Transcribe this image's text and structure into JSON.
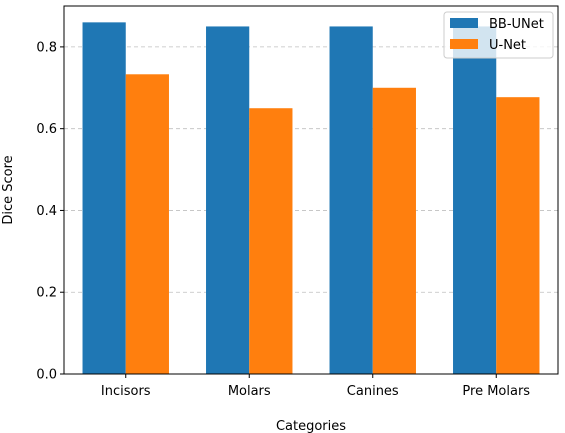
{
  "chart_data": {
    "type": "bar",
    "title": "",
    "xlabel": "Categories",
    "ylabel": "Dice Score",
    "categories": [
      "Incisors",
      "Molars",
      "Canines",
      "Pre Molars"
    ],
    "series": [
      {
        "name": "BB-UNet",
        "color": "#1f77b4",
        "values": [
          0.86,
          0.85,
          0.85,
          0.85
        ]
      },
      {
        "name": "U-Net",
        "color": "#ff7f0e",
        "values": [
          0.733,
          0.65,
          0.7,
          0.677
        ]
      }
    ],
    "ylim": [
      0,
      0.9
    ],
    "yticks": [
      0.0,
      0.2,
      0.4,
      0.6,
      0.8
    ],
    "ytick_labels": [
      "0.0",
      "0.2",
      "0.4",
      "0.6",
      "0.8"
    ],
    "grid": "horizontal-dashed",
    "legend": "top-right"
  }
}
